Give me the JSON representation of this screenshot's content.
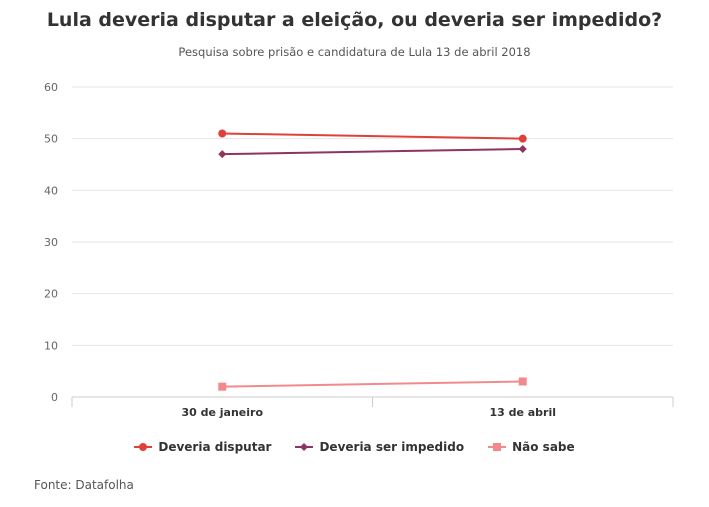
{
  "chart_data": {
    "type": "line",
    "title": "Lula deveria disputar a eleição, ou deveria ser impedido?",
    "subtitle": "Pesquisa sobre prisão e candidatura de Lula 13 de abril 2018",
    "categories": [
      "30 de janeiro",
      "13 de abril"
    ],
    "ylim": [
      0,
      60
    ],
    "yticks": [
      0,
      10,
      20,
      30,
      40,
      50,
      60
    ],
    "xlabel": "",
    "ylabel": "",
    "grid": true,
    "legend_position": "bottom",
    "series": [
      {
        "name": "Deveria disputar",
        "values": [
          51,
          50
        ],
        "color": "#e0403a",
        "marker": "circle"
      },
      {
        "name": "Deveria ser impedido",
        "values": [
          47,
          48
        ],
        "color": "#8e3461",
        "marker": "diamond"
      },
      {
        "name": "Não sabe",
        "values": [
          2,
          3
        ],
        "color": "#f28a8d",
        "marker": "square"
      }
    ]
  },
  "source": "Fonte: Datafolha"
}
